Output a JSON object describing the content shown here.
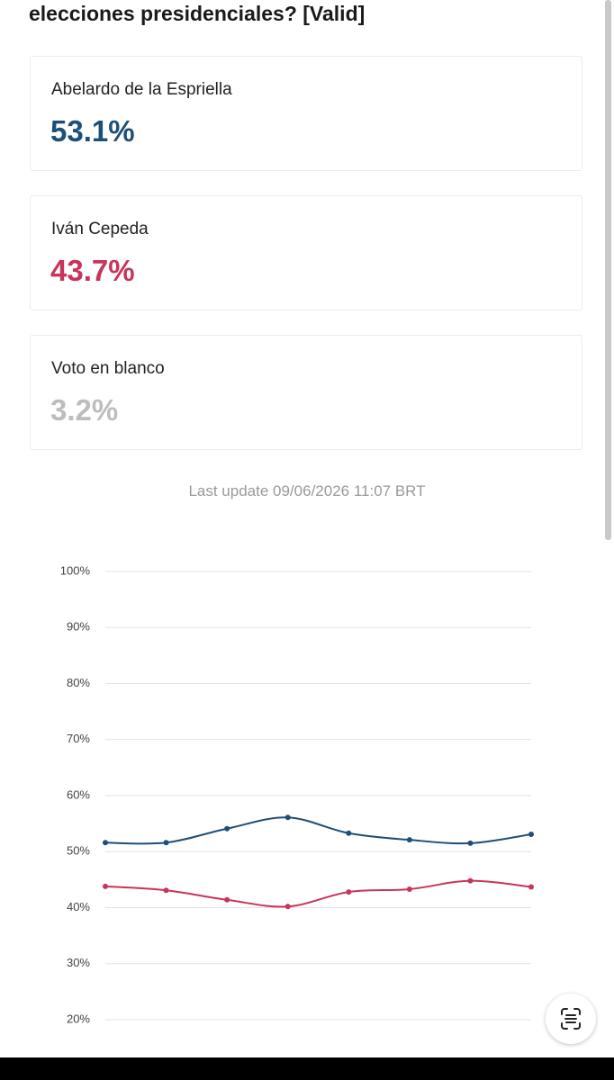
{
  "header": {
    "title": "elecciones presidenciales? [Valid]"
  },
  "cards": [
    {
      "name": "Abelardo de la Espriella",
      "value": "53.1%",
      "color": "#1d4f78"
    },
    {
      "name": "Iván Cepeda",
      "value": "43.7%",
      "color": "#c8345a"
    },
    {
      "name": "Voto en blanco",
      "value": "3.2%",
      "color": "#bdbdbd"
    }
  ],
  "last_update": "Last update 09/06/2026 11:07 BRT",
  "chart_data": {
    "type": "line",
    "categories": [
      null,
      null,
      null,
      null,
      null,
      null,
      null,
      null
    ],
    "series": [
      {
        "color": "#1d4f78",
        "values": [
          51.6,
          51.6,
          54.1,
          56.1,
          53.3,
          52.1,
          51.5,
          53.1
        ]
      },
      {
        "color": "#c8345a",
        "values": [
          43.8,
          43.1,
          41.4,
          40.2,
          42.8,
          43.3,
          44.8,
          43.7
        ]
      }
    ],
    "ylim": [
      20,
      100
    ],
    "yticks": [
      {
        "value": 20,
        "label": "20%"
      },
      {
        "value": 30,
        "label": "30%"
      },
      {
        "value": 40,
        "label": "40%"
      },
      {
        "value": 50,
        "label": "50%"
      },
      {
        "value": 60,
        "label": "60%"
      },
      {
        "value": 70,
        "label": "70%"
      },
      {
        "value": 80,
        "label": "80%"
      },
      {
        "value": 90,
        "label": "90%"
      },
      {
        "value": 100,
        "label": "100%"
      }
    ],
    "grid": true
  }
}
